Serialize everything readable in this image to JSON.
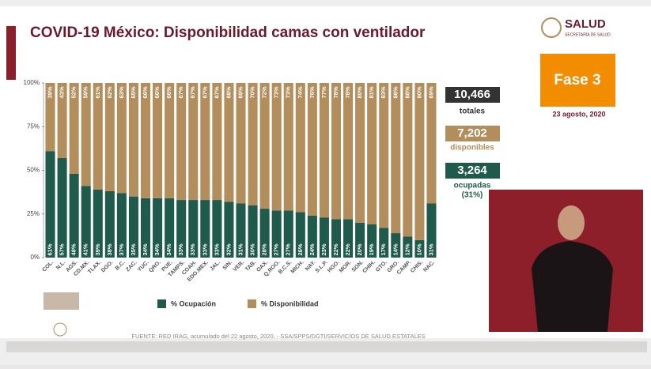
{
  "chart_data": {
    "type": "stacked-bar",
    "title": "COVID-19 México: Disponibilidad camas con ventilador",
    "categories": [
      "COL.",
      "N.L.",
      "AGS.",
      "CD.MX.",
      "TLAX.",
      "DGO.",
      "B.C.",
      "ZAC.",
      "YUC.",
      "QRO.",
      "PUE.",
      "TAMPS.",
      "COAH.",
      "EDO.MEX.",
      "JAL.",
      "SIN.",
      "VER.",
      "TAB.",
      "OAX.",
      "Q.ROO.",
      "B.C.S.",
      "MICH.",
      "NAY.",
      "S.L.P.",
      "HGO.",
      "MOR.",
      "SON.",
      "CHIH.",
      "GTO.",
      "GRO.",
      "CAMP.",
      "CHIS.",
      "NAC."
    ],
    "series": [
      {
        "name": "% Ocupación",
        "color": "#1f5a4c",
        "values": [
          61,
          57,
          48,
          41,
          39,
          38,
          37,
          35,
          34,
          34,
          34,
          33,
          33,
          33,
          33,
          32,
          31,
          30,
          28,
          27,
          27,
          26,
          24,
          23,
          22,
          22,
          20,
          19,
          17,
          14,
          12,
          10,
          31
        ],
        "value_labels": [
          "61%",
          "57%",
          "48%",
          "41%",
          "39%",
          "38%",
          "37%",
          "35%",
          "34%",
          "34%",
          "34%",
          "33%",
          "33%",
          "33%",
          "33%",
          "32%",
          "31%",
          "30%",
          "28%",
          "27%",
          "27%",
          "26%",
          "24%",
          "23%",
          "22%",
          "22%",
          "20%",
          "19%",
          "17%",
          "14%",
          "12%",
          "10%",
          "31%"
        ]
      },
      {
        "name": "% Disponibilidad",
        "color": "#b38e5d",
        "values": [
          39,
          43,
          52,
          59,
          61,
          62,
          63,
          65,
          66,
          66,
          66,
          67,
          67,
          67,
          67,
          68,
          69,
          70,
          72,
          73,
          73,
          74,
          76,
          77,
          78,
          78,
          80,
          81,
          83,
          86,
          88,
          90,
          69
        ],
        "value_labels": [
          "39%",
          "43%",
          "52%",
          "59%",
          "61%",
          "62%",
          "63%",
          "65%",
          "66%",
          "66%",
          "66%",
          "67%",
          "67%",
          "67%",
          "67%",
          "68%",
          "69%",
          "70%",
          "72%",
          "73%",
          "73%",
          "74%",
          "76%",
          "77%",
          "78%",
          "78%",
          "80%",
          "81%",
          "83%",
          "86%",
          "88%",
          "90%",
          "69%"
        ]
      }
    ],
    "ylim": [
      0,
      100
    ],
    "yticks": [
      {
        "value": 0,
        "label": "0%"
      },
      {
        "value": 25,
        "label": "25%"
      },
      {
        "value": 50,
        "label": "50%"
      },
      {
        "value": 75,
        "label": "75%"
      },
      {
        "value": 100,
        "label": "100%"
      }
    ],
    "grid": false
  },
  "summary": {
    "total": "10,466",
    "total_label": "totales",
    "available": "7,202",
    "available_label": "disponibles",
    "occupied": "3,264",
    "occupied_label": "ocupadas",
    "occupied_pct": "(31%)"
  },
  "header": {
    "logo": "SALUD",
    "logo_sub": "SECRETARÍA DE SALUD",
    "phase": "Fase 3",
    "date": "23 agosto, 2020"
  },
  "source": "FUENTE: RED IRAG, acumulado del 22 agosto, 2020. - SSA/SPPS/DGTI/SERVICIOS DE SALUD ESTATALES"
}
